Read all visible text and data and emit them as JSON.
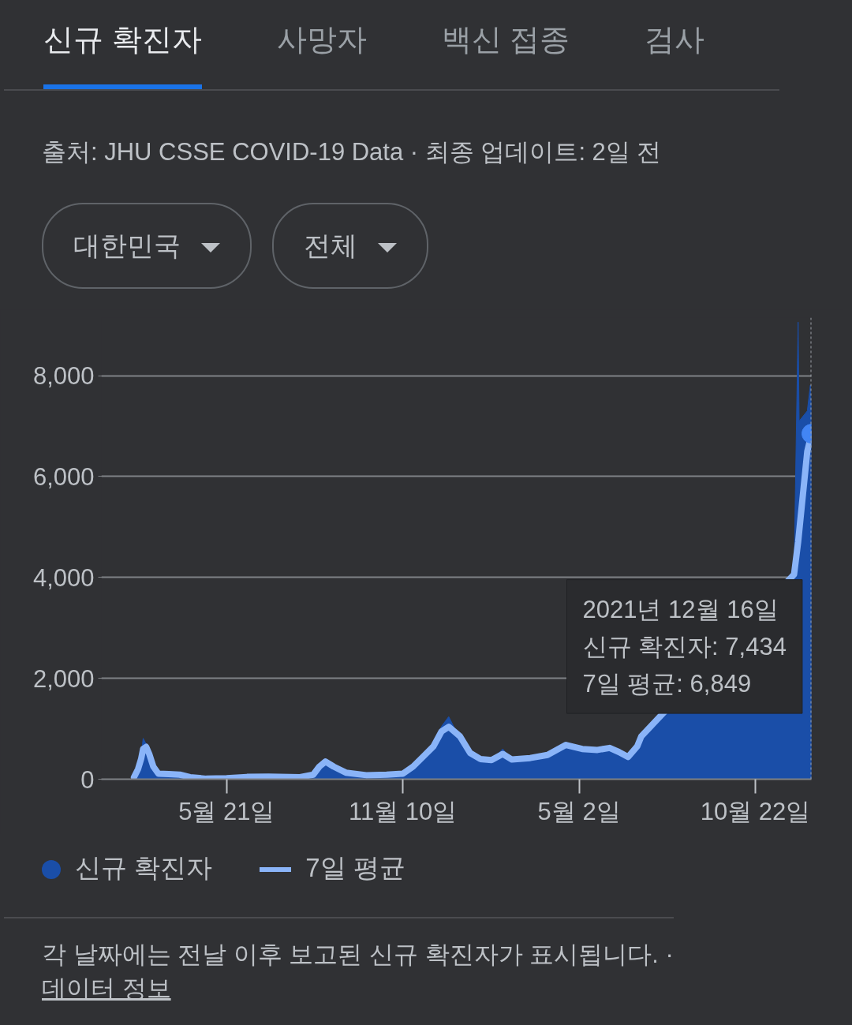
{
  "chart_data": {
    "type": "area",
    "x": [
      "2020-02-20",
      "2020-02-24",
      "2020-02-27",
      "2020-02-29",
      "2020-03-03",
      "2020-03-06",
      "2020-03-10",
      "2020-03-15",
      "2020-03-25",
      "2020-04-05",
      "2020-04-15",
      "2020-05-01",
      "2020-05-21",
      "2020-06-10",
      "2020-07-01",
      "2020-08-01",
      "2020-08-14",
      "2020-08-20",
      "2020-08-26",
      "2020-09-03",
      "2020-09-15",
      "2020-10-05",
      "2020-10-25",
      "2020-11-10",
      "2020-11-20",
      "2020-11-30",
      "2020-12-10",
      "2020-12-18",
      "2020-12-25",
      "2021-01-05",
      "2021-01-15",
      "2021-01-25",
      "2021-02-05",
      "2021-02-16",
      "2021-02-25",
      "2021-03-15",
      "2021-04-01",
      "2021-04-19",
      "2021-05-05",
      "2021-05-20",
      "2021-06-01",
      "2021-06-10",
      "2021-06-19",
      "2021-06-28",
      "2021-07-02",
      "2021-11-29",
      "2021-12-03",
      "2021-12-04",
      "2021-12-12",
      "2021-12-15",
      "2021-12-16"
    ],
    "series": [
      {
        "name": "신규 확진자",
        "color": "#1a4ea8",
        "values": [
          50,
          230,
          450,
          810,
          700,
          480,
          240,
          90,
          100,
          80,
          30,
          10,
          20,
          50,
          50,
          30,
          100,
          280,
          400,
          200,
          110,
          70,
          90,
          120,
          300,
          480,
          700,
          1050,
          1240,
          800,
          500,
          420,
          370,
          600,
          380,
          440,
          500,
          700,
          620,
          600,
          650,
          550,
          430,
          700,
          900,
          4100,
          9060,
          7100,
          7300,
          7810,
          7434
        ]
      },
      {
        "name": "7일 평균",
        "type": "line",
        "color": "#8ab4f8",
        "values": [
          40,
          200,
          400,
          600,
          640,
          500,
          250,
          110,
          100,
          90,
          40,
          10,
          20,
          45,
          50,
          40,
          90,
          250,
          350,
          250,
          130,
          80,
          90,
          110,
          250,
          450,
          650,
          950,
          1040,
          850,
          520,
          400,
          380,
          500,
          390,
          420,
          480,
          680,
          600,
          580,
          620,
          540,
          440,
          650,
          850,
          4060,
          4700,
          4900,
          6500,
          6750,
          6849
        ]
      }
    ],
    "xlim": [
      "2020-01-19",
      "2021-12-16"
    ],
    "xticks": [
      {
        "value": "2020-05-21",
        "label": "5월 21일"
      },
      {
        "value": "2020-11-10",
        "label": "11월 10일"
      },
      {
        "value": "2021-05-02",
        "label": "5월 2일"
      },
      {
        "value": "2021-10-22",
        "label": "10월 22일"
      }
    ],
    "ylim": [
      0,
      9150
    ],
    "yticks": [
      {
        "value": 0,
        "label": "0"
      },
      {
        "value": 2000,
        "label": "2,000"
      },
      {
        "value": 4000,
        "label": "4,000"
      },
      {
        "value": 6000,
        "label": "6,000"
      },
      {
        "value": 8000,
        "label": "8,000"
      }
    ],
    "grid": "y",
    "legend": "bottom",
    "ref_lines": [
      {
        "axis": "x",
        "value": "2021-12-16",
        "line_style": "dotted",
        "color": "#9aa0a6"
      }
    ],
    "annotations": [
      "신규 확진자",
      "사망자",
      "백신 접종",
      "검사",
      "출처: JHU CSSE COVID-19 Data · 최종 업데이트: 2일 전",
      "대한민국",
      "전체",
      "2021년 12월 16일\n신규 확진자: 7,434\n7일 평균: 6,849",
      "각 날짜에는 전날 이후 보고된 신규 확진자가 표시됩니다.  ·",
      "데이터 정보"
    ]
  }
}
